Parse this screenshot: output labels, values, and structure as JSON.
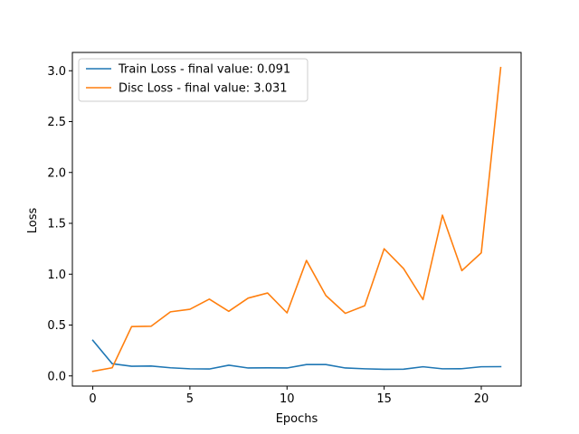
{
  "chart_data": {
    "type": "line",
    "title": "",
    "xlabel": "Epochs",
    "ylabel": "Loss",
    "xlim": [
      -1.05,
      22.05
    ],
    "ylim": [
      -0.1,
      3.18
    ],
    "xticks": [
      0,
      5,
      10,
      15,
      20
    ],
    "yticks": [
      0.0,
      0.5,
      1.0,
      1.5,
      2.0,
      2.5,
      3.0
    ],
    "xtick_labels": [
      "0",
      "5",
      "10",
      "15",
      "20"
    ],
    "ytick_labels": [
      "0.0",
      "0.5",
      "1.0",
      "1.5",
      "2.0",
      "2.5",
      "3.0"
    ],
    "grid": false,
    "legend_position": "top-left",
    "x": [
      0,
      1,
      2,
      3,
      4,
      5,
      6,
      7,
      8,
      9,
      10,
      11,
      12,
      13,
      14,
      15,
      16,
      17,
      18,
      19,
      20,
      21
    ],
    "series": [
      {
        "name": "Train Loss - final value: 0.091",
        "color": "#1f77b4",
        "values": [
          0.35,
          0.12,
          0.095,
          0.097,
          0.08,
          0.07,
          0.068,
          0.105,
          0.078,
          0.079,
          0.078,
          0.112,
          0.112,
          0.078,
          0.07,
          0.065,
          0.066,
          0.09,
          0.07,
          0.071,
          0.09,
          0.091
        ]
      },
      {
        "name": "Disc Loss - final value: 3.031",
        "color": "#ff7f0e",
        "values": [
          0.045,
          0.08,
          0.485,
          0.488,
          0.63,
          0.655,
          0.755,
          0.635,
          0.765,
          0.815,
          0.62,
          1.135,
          0.79,
          0.615,
          0.69,
          1.25,
          1.055,
          0.75,
          1.58,
          1.035,
          1.21,
          3.031
        ]
      }
    ]
  }
}
